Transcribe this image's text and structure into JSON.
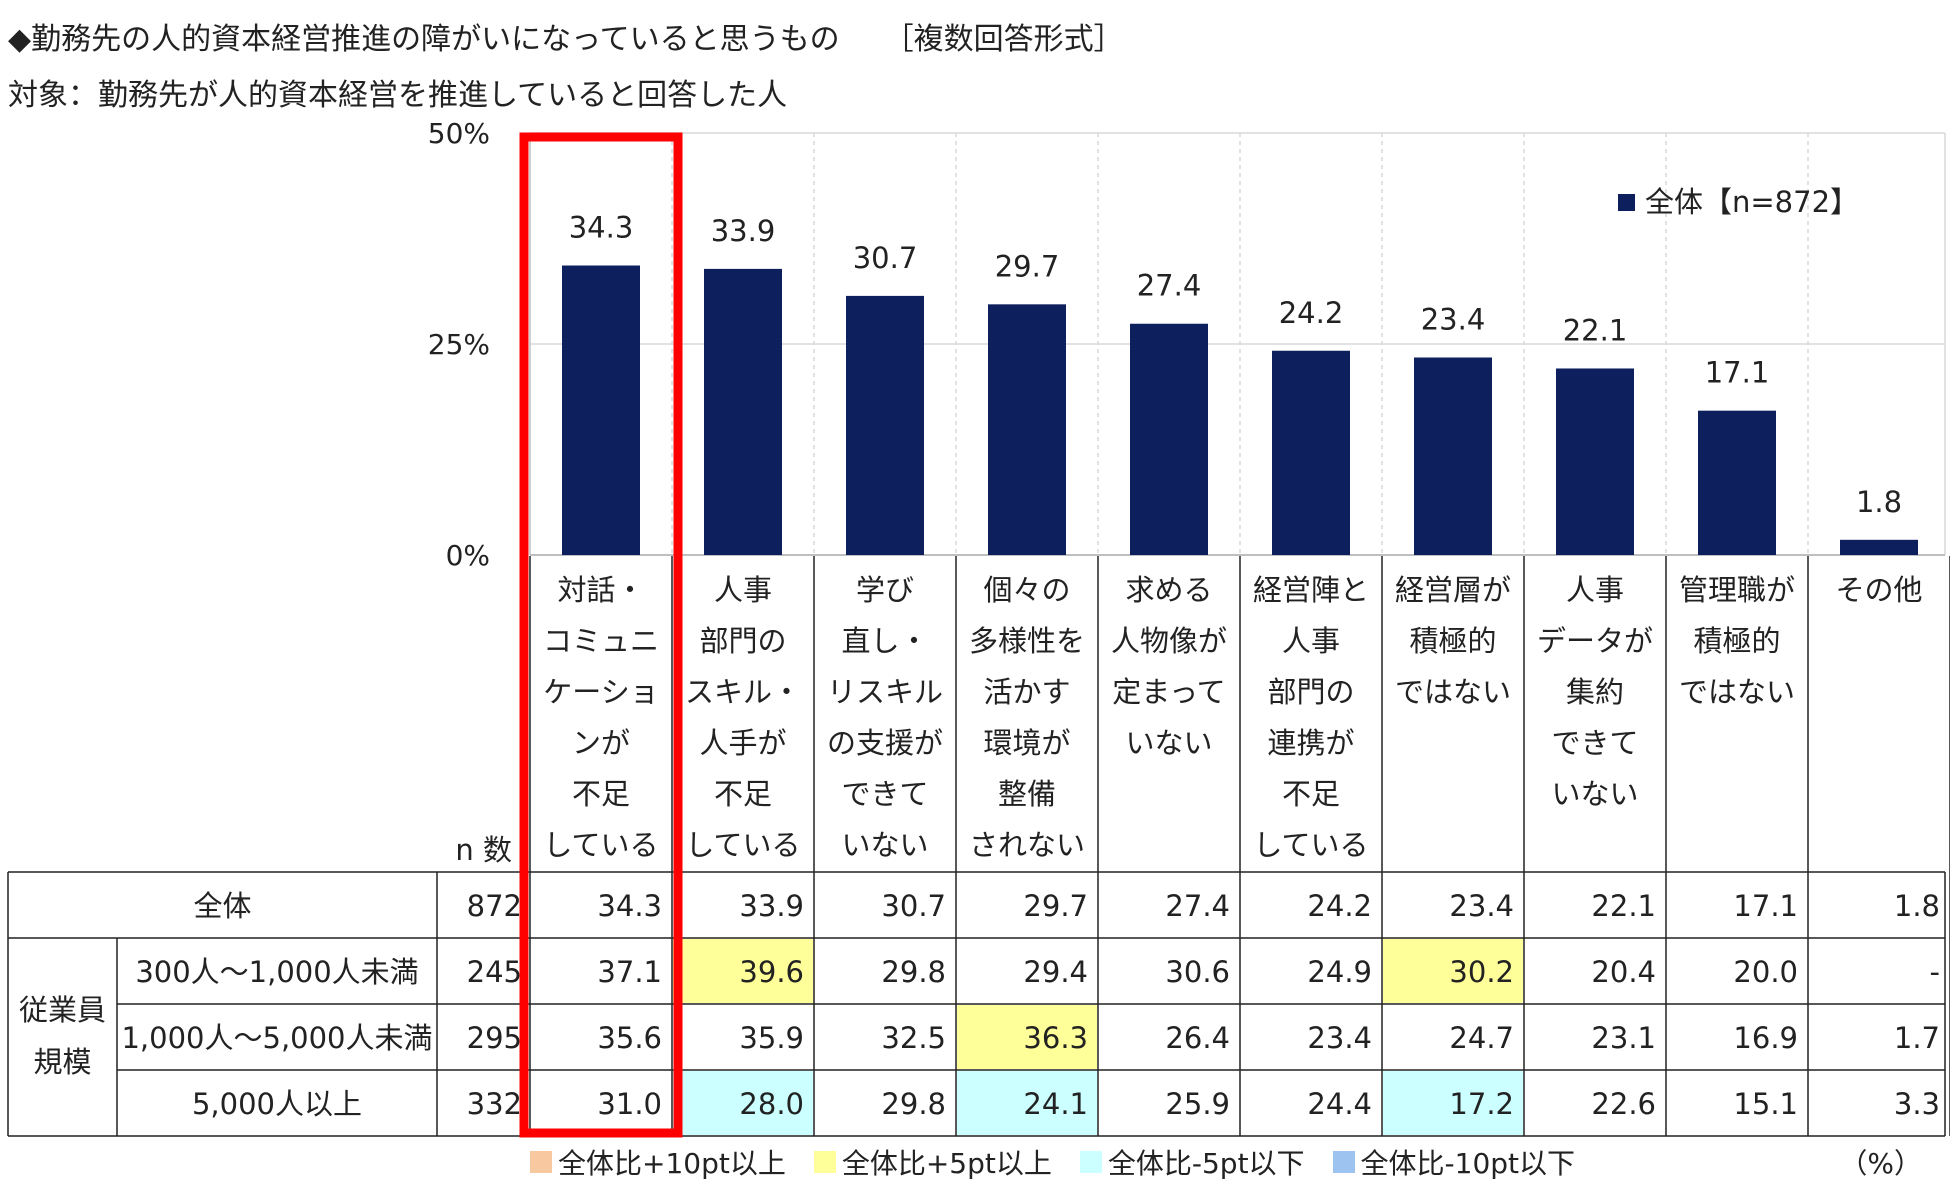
{
  "title": "◆勤務先の人的資本経営推進の障がいになっていると思うもの",
  "title_tag": "［複数回答形式］",
  "subtitle": "対象：勤務先が人的資本経営を推進していると回答した人",
  "n_label": "n 数",
  "unit": "（%）",
  "colors": {
    "bar": "#0d1f5c",
    "highlight": "#ff0000",
    "yellow": "#ffff99",
    "cyan": "#ccffff",
    "orange": "#f8c8a0",
    "blue": "#9dc3f0"
  },
  "highlight_category_index": 0,
  "chart_data": {
    "type": "bar",
    "title": "◆勤務先の人的資本経営推進の障がいになっていると思うもの",
    "ylim": [
      0,
      50
    ],
    "yticks": [
      "0%",
      "25%",
      "50%"
    ],
    "ytick_values": [
      0,
      25,
      50
    ],
    "legend": {
      "label": "全体【n=872】",
      "placement": "top-right"
    },
    "categories": [
      [
        "対話・",
        "コミュニ",
        "ケーショ",
        "ンが",
        "不足",
        "している"
      ],
      [
        "人事",
        "部門の",
        "スキル・",
        "人手が",
        "不足",
        "している"
      ],
      [
        "学び",
        "直し・",
        "リスキル",
        "の支援が",
        "できて",
        "いない"
      ],
      [
        "個々の",
        "多様性を",
        "活かす",
        "環境が",
        "整備",
        "されない"
      ],
      [
        "求める",
        "人物像が",
        "定まって",
        "いない"
      ],
      [
        "経営陣と",
        "人事",
        "部門の",
        "連携が",
        "不足",
        "している"
      ],
      [
        "経営層が",
        "積極的",
        "ではない"
      ],
      [
        "人事",
        "データが",
        "集約",
        "できて",
        "いない"
      ],
      [
        "管理職が",
        "積極的",
        "ではない"
      ],
      [
        "その他"
      ]
    ],
    "series": [
      {
        "name": "全体【n=872】",
        "values": [
          34.3,
          33.9,
          30.7,
          29.7,
          27.4,
          24.2,
          23.4,
          22.1,
          17.1,
          1.8
        ]
      }
    ],
    "value_labels": [
      "34.3",
      "33.9",
      "30.7",
      "29.7",
      "27.4",
      "24.2",
      "23.4",
      "22.1",
      "17.1",
      "1.8"
    ]
  },
  "table": {
    "group_label": [
      "従業員",
      "規模"
    ],
    "rows": [
      {
        "label": "全体",
        "n": "872",
        "values": [
          "34.3",
          "33.9",
          "30.7",
          "29.7",
          "27.4",
          "24.2",
          "23.4",
          "22.1",
          "17.1",
          "1.8"
        ],
        "marks": [
          "",
          "",
          "",
          "",
          "",
          "",
          "",
          "",
          "",
          ""
        ]
      },
      {
        "label": "300人～1,000人未満",
        "n": "245",
        "values": [
          "37.1",
          "39.6",
          "29.8",
          "29.4",
          "30.6",
          "24.9",
          "30.2",
          "20.4",
          "20.0",
          "-"
        ],
        "marks": [
          "",
          "yellow",
          "",
          "",
          "",
          "",
          "yellow",
          "",
          "",
          ""
        ]
      },
      {
        "label": "1,000人～5,000人未満",
        "n": "295",
        "values": [
          "35.6",
          "35.9",
          "32.5",
          "36.3",
          "26.4",
          "23.4",
          "24.7",
          "23.1",
          "16.9",
          "1.7"
        ],
        "marks": [
          "",
          "",
          "",
          "yellow",
          "",
          "",
          "",
          "",
          "",
          ""
        ]
      },
      {
        "label": "5,000人以上",
        "n": "332",
        "values": [
          "31.0",
          "28.0",
          "29.8",
          "24.1",
          "25.9",
          "24.4",
          "17.2",
          "22.6",
          "15.1",
          "3.3"
        ],
        "marks": [
          "",
          "cyan",
          "",
          "cyan",
          "",
          "",
          "cyan",
          "",
          "",
          ""
        ]
      }
    ]
  },
  "key": [
    {
      "label": "全体比+10pt以上",
      "color": "#f8c8a0"
    },
    {
      "label": "全体比+5pt以上",
      "color": "#ffff99"
    },
    {
      "label": "全体比-5pt以下",
      "color": "#ccffff"
    },
    {
      "label": "全体比-10pt以下",
      "color": "#9dc3f0"
    }
  ]
}
